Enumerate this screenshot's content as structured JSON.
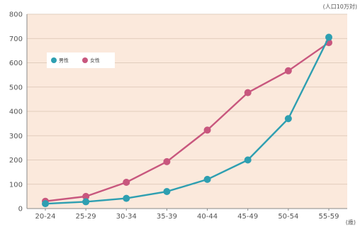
{
  "chart_data": {
    "type": "line",
    "y_unit_label": "(人口10万対)",
    "x_unit_label": "(歳)",
    "categories": [
      "20-24",
      "25-29",
      "30-34",
      "35-39",
      "40-44",
      "45-49",
      "50-54",
      "55-59"
    ],
    "y_ticks": [
      "0",
      "100",
      "200",
      "300",
      "400",
      "500",
      "600",
      "700",
      "800"
    ],
    "ylim": [
      0,
      800
    ],
    "grid": true,
    "legend_position": "top-left",
    "background_color": "#fbe9dc",
    "series": [
      {
        "name": "男性",
        "color": "#2e9fb1",
        "values": [
          20,
          28,
          42,
          70,
          120,
          200,
          370,
          705
        ]
      },
      {
        "name": "女性",
        "color": "#c8577e",
        "values": [
          30,
          50,
          108,
          193,
          323,
          477,
          567,
          683
        ]
      }
    ]
  }
}
